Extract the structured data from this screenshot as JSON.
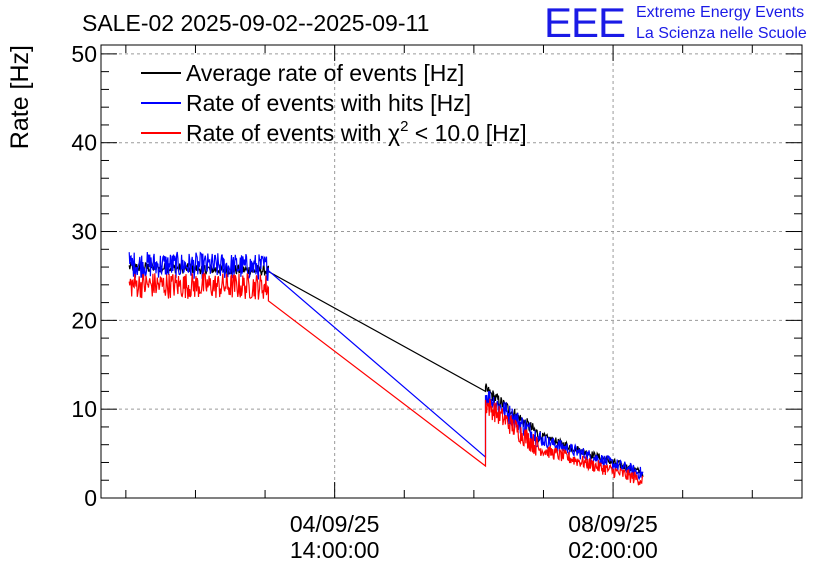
{
  "logo": {
    "letters": "EEE",
    "line1": "Extreme Energy Events",
    "line2": "La Scienza nelle Scuole",
    "color": "#1a1ae6"
  },
  "chart_data": {
    "type": "line",
    "title": "SALE-02 2025-09-02--2025-09-11",
    "ylabel": "Rate [Hz]",
    "xlabel": "",
    "ylim": [
      0,
      51
    ],
    "yticks": [
      0,
      10,
      20,
      30,
      40,
      50
    ],
    "x_axis_unit": "hours since 2025-09-02 00:00",
    "xlim": [
      -8.5,
      203
    ],
    "xticks": [
      {
        "x": 62,
        "date": "04/09/25",
        "time": "14:00:00"
      },
      {
        "x": 146,
        "date": "08/09/25",
        "time": "02:00:00"
      }
    ],
    "grid": true,
    "legend_position": "top-left",
    "series": [
      {
        "name": "Average rate of events [Hz]",
        "color": "#000000",
        "segments": [
          {
            "x_start": 0,
            "x_end": 42,
            "y_start": 26.0,
            "y_end": 25.6,
            "noise": 0.4
          },
          {
            "x_start": 42,
            "x_end": 107.5,
            "y_start": 25.5,
            "y_end": 12.0,
            "noise": 0
          },
          {
            "x_start": 107.5,
            "x_end": 124,
            "y_start": 12.2,
            "y_end": 7.0,
            "noise": 0.5
          },
          {
            "x_start": 124,
            "x_end": 155,
            "y_start": 7.0,
            "y_end": 2.8,
            "noise": 0.3
          }
        ]
      },
      {
        "name": "Rate of events with hits [Hz]",
        "color": "#0000ff",
        "segments": [
          {
            "x_start": 0,
            "x_end": 42,
            "y_start": 26.3,
            "y_end": 26.0,
            "noise": 1.0
          },
          {
            "x_start": 42,
            "x_end": 107.5,
            "y_start": 25.6,
            "y_end": 4.6,
            "noise": 0
          },
          {
            "x_start": 107.5,
            "x_end": 124,
            "y_start": 11.6,
            "y_end": 6.6,
            "noise": 0.8
          },
          {
            "x_start": 124,
            "x_end": 155,
            "y_start": 6.6,
            "y_end": 2.7,
            "noise": 0.5
          }
        ]
      },
      {
        "name": "Rate of events with χ² < 10.0 [Hz]",
        "legend_prefix": "Rate of events with ",
        "legend_chi": "χ",
        "legend_sup": "2",
        "legend_suffix": " < 10.0 [Hz]",
        "color": "#ff0000",
        "segments": [
          {
            "x_start": 0,
            "x_end": 42,
            "y_start": 24.0,
            "y_end": 23.8,
            "noise": 1.0
          },
          {
            "x_start": 42,
            "x_end": 107.5,
            "y_start": 22.2,
            "y_end": 3.6,
            "noise": 0
          },
          {
            "x_start": 107.5,
            "x_end": 124,
            "y_start": 10.6,
            "y_end": 5.5,
            "noise": 0.8
          },
          {
            "x_start": 124,
            "x_end": 155,
            "y_start": 5.5,
            "y_end": 2.0,
            "noise": 0.5
          }
        ]
      }
    ]
  }
}
